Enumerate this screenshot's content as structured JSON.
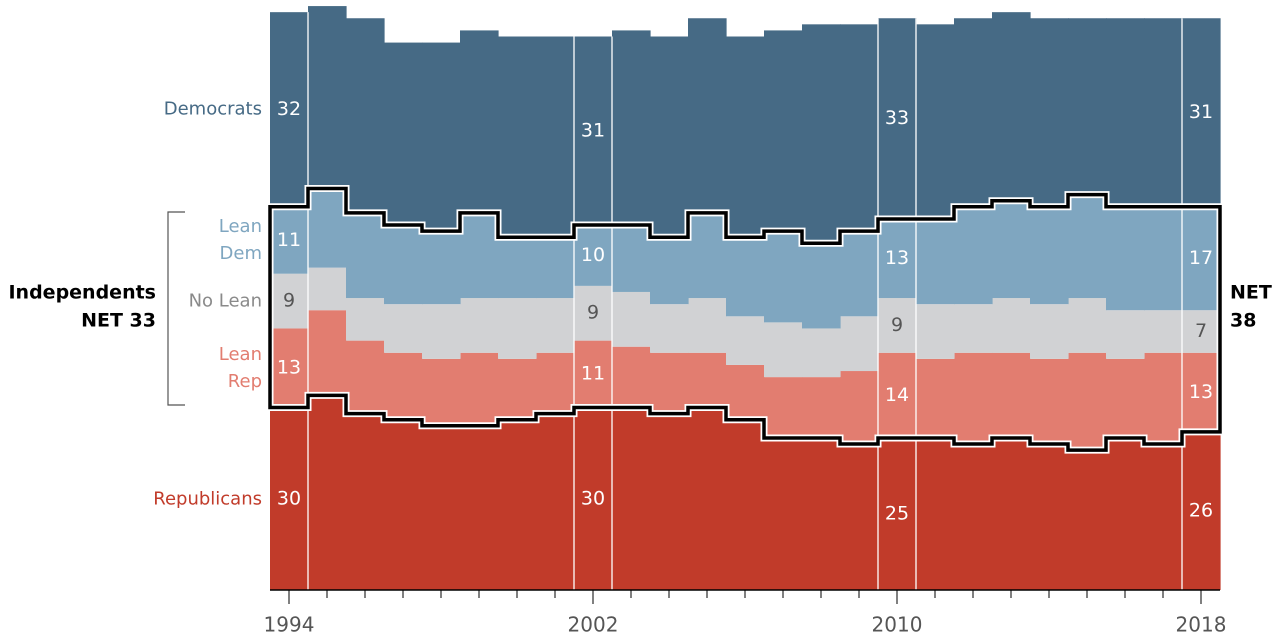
{
  "chart_data": {
    "type": "stacked_step_area",
    "x": [
      1994,
      1995,
      1996,
      1997,
      1998,
      1999,
      2000,
      2001,
      2002,
      2003,
      2004,
      2005,
      2006,
      2007,
      2008,
      2009,
      2010,
      2011,
      2012,
      2013,
      2014,
      2015,
      2016,
      2017,
      2018
    ],
    "series": [
      {
        "name": "Republicans",
        "color": "#c13b2a",
        "label_color": "#c13b2a",
        "values": [
          30,
          32,
          29,
          28,
          27,
          27,
          28,
          29,
          30,
          30,
          29,
          30,
          28,
          25,
          25,
          24,
          25,
          25,
          24,
          25,
          24,
          23,
          25,
          24,
          26
        ]
      },
      {
        "name": "Lean Rep",
        "color": "#e27d70",
        "label_color": "#e27d70",
        "values": [
          13,
          14,
          12,
          11,
          11,
          12,
          10,
          10,
          11,
          10,
          10,
          9,
          9,
          10,
          10,
          12,
          14,
          13,
          15,
          14,
          14,
          16,
          13,
          15,
          13
        ]
      },
      {
        "name": "No Lean",
        "color": "#d1d2d4",
        "label_color": "#8a8a8a",
        "values": [
          9,
          7,
          7,
          8,
          9,
          9,
          10,
          9,
          9,
          9,
          8,
          9,
          8,
          9,
          8,
          9,
          9,
          9,
          8,
          9,
          9,
          9,
          8,
          7,
          7
        ]
      },
      {
        "name": "Lean Dem",
        "color": "#7fa6c0",
        "label_color": "#7fa6c0",
        "values": [
          11,
          13,
          14,
          13,
          12,
          14,
          10,
          10,
          10,
          11,
          11,
          14,
          13,
          15,
          14,
          14,
          13,
          14,
          16,
          16,
          16,
          17,
          17,
          17,
          17
        ]
      },
      {
        "name": "Democrats",
        "color": "#466a85",
        "label_color": "#466a85",
        "values": [
          32,
          30,
          32,
          30,
          31,
          30,
          33,
          33,
          31,
          32,
          33,
          32,
          33,
          33,
          36,
          34,
          33,
          32,
          31,
          31,
          31,
          29,
          31,
          31,
          31
        ]
      }
    ],
    "xlim": [
      1993.5,
      2018.5
    ],
    "xticks": [
      1994,
      2002,
      2010,
      2018
    ],
    "ylim": [
      0,
      97
    ],
    "annotations": {
      "left": [
        "Independents",
        "NET 33"
      ],
      "right": [
        "NET",
        "38"
      ]
    }
  }
}
